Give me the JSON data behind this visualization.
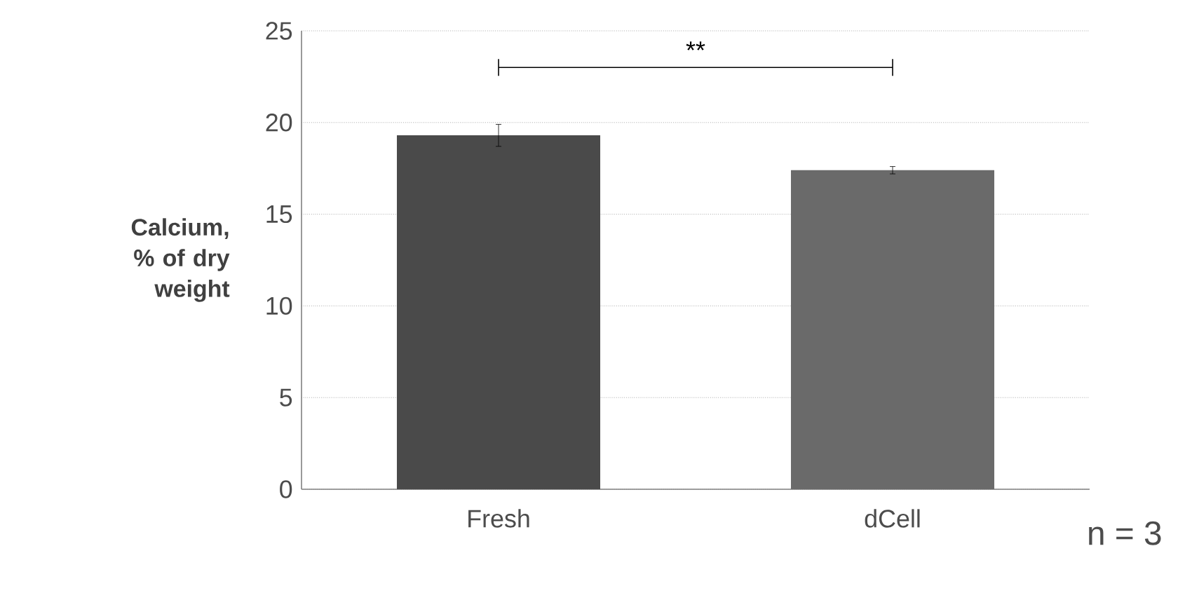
{
  "chart_data": {
    "type": "bar",
    "ylabel": "Calcium, % of dry weight",
    "categories": [
      "Fresh",
      "dCell"
    ],
    "values": [
      19.3,
      17.4
    ],
    "errors": [
      0.6,
      0.2
    ],
    "colors": [
      "#4a4a4a",
      "#6a6a6a"
    ],
    "ylim": [
      0,
      25
    ],
    "yticks": [
      0,
      5,
      10,
      15,
      20,
      25
    ],
    "grid": "y",
    "annotations": [
      "**",
      "n = 3"
    ]
  }
}
